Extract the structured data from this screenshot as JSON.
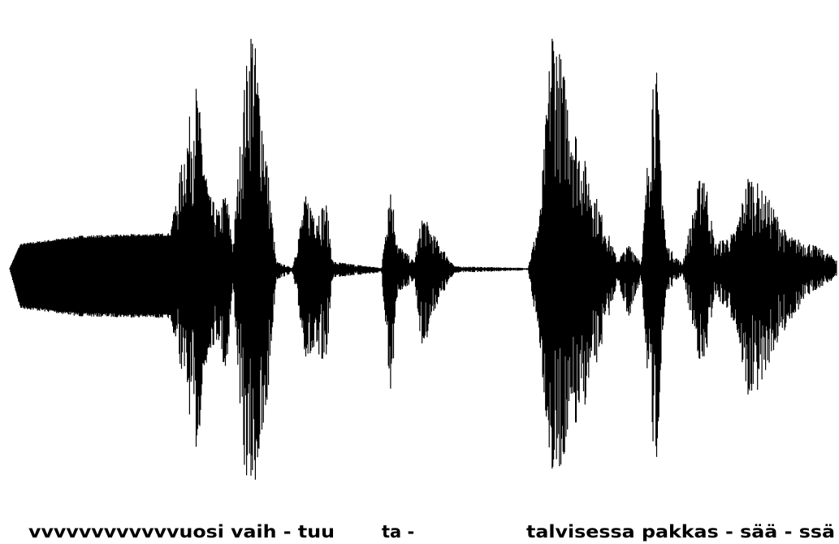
{
  "captions": [
    "vvvvvvvvvvvvuosi vaih - tuu",
    "ta -",
    "talvisessa pakkas - sää - ssä"
  ]
}
